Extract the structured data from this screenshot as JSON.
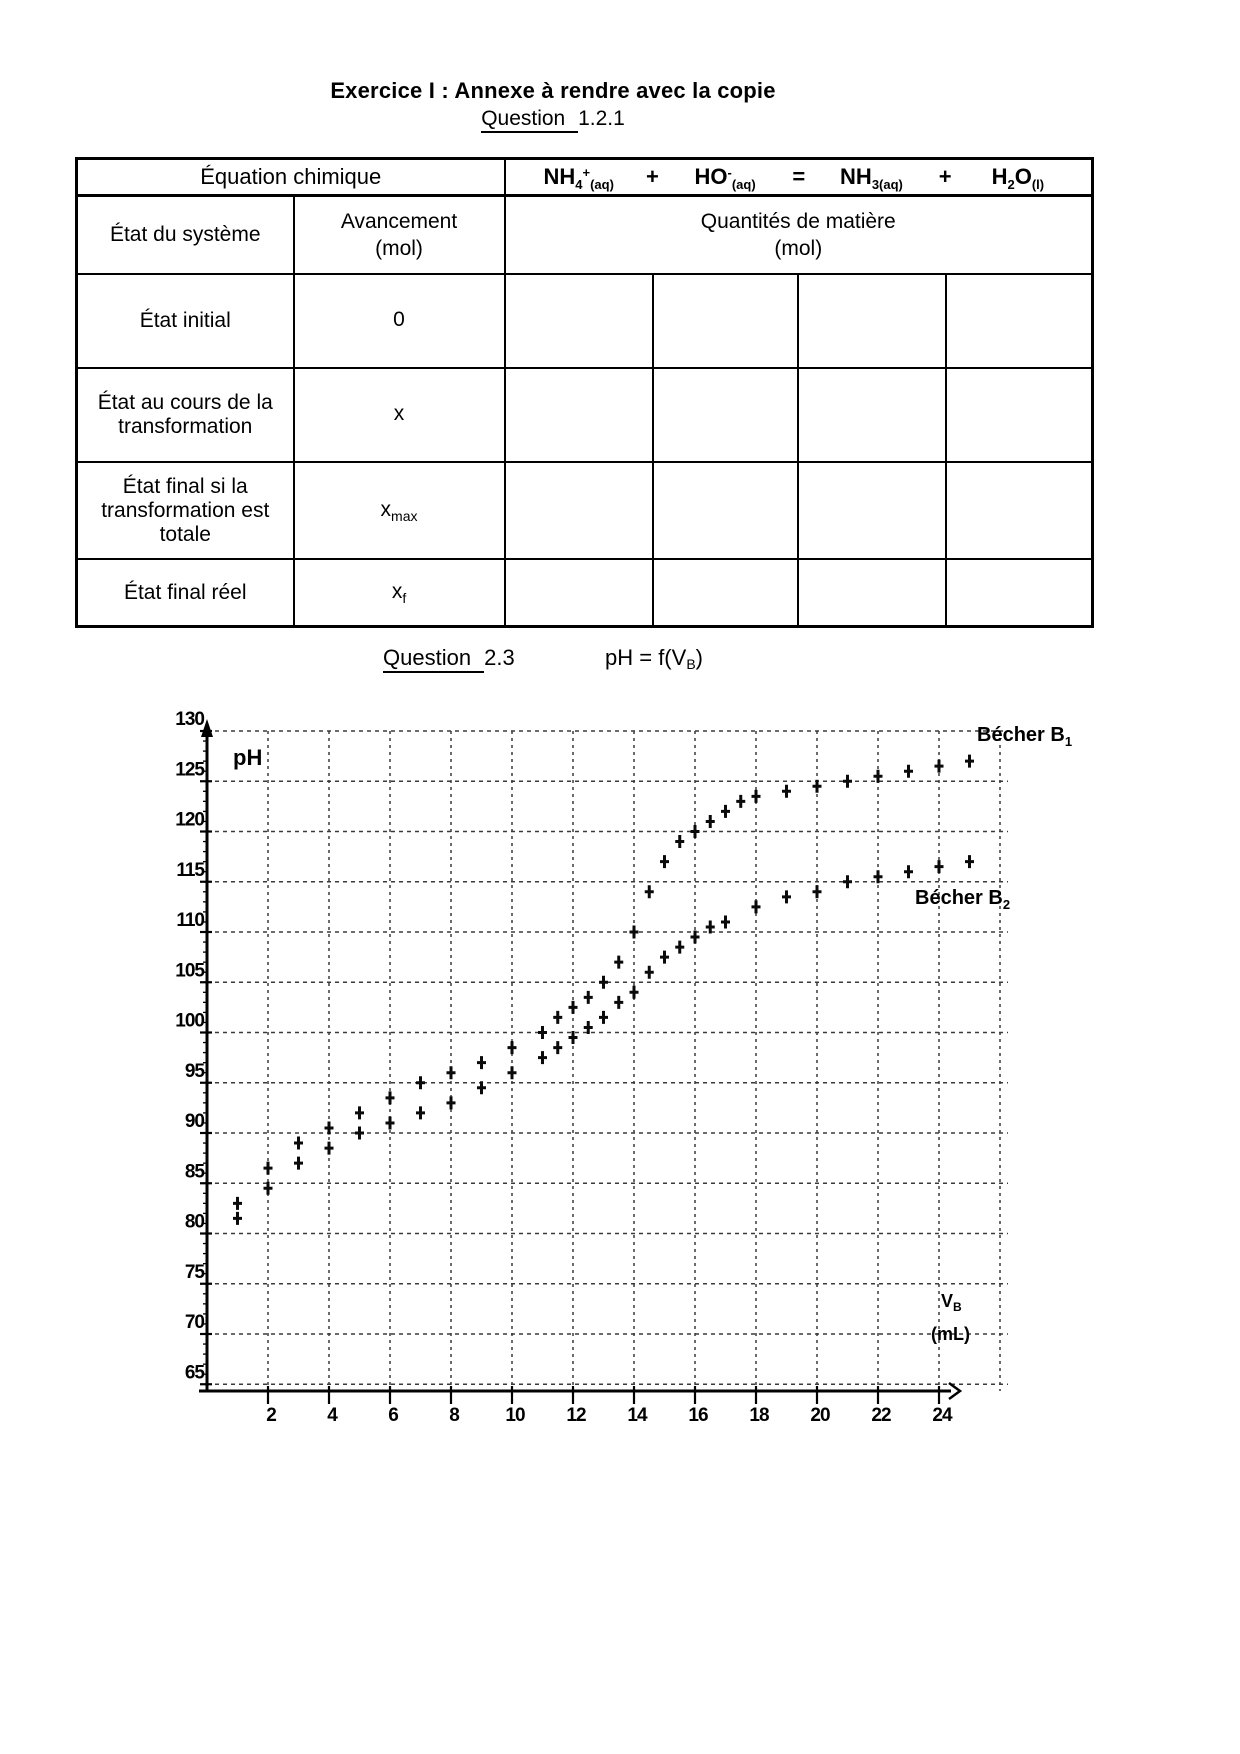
{
  "page": {
    "title": "Exercice I : Annexe à rendre avec la copie",
    "question1": {
      "underlined": "Question ",
      "rest": "1.2.1"
    },
    "question2": {
      "underlined": "Question ",
      "rest": "2.3"
    },
    "question2_formula": {
      "pre": "pH = f(V",
      "sub": "B",
      "post": ")"
    }
  },
  "table": {
    "equation_label": "Équation chimique",
    "equation": {
      "sp1": {
        "main": "NH",
        "sub": "4",
        "sup": "+",
        "state": "(aq)"
      },
      "op1": "+",
      "sp2": {
        "main": "HO",
        "sup": "-",
        "state": "(aq)"
      },
      "op2": "=",
      "sp3": {
        "main": "NH",
        "sub": "3(aq)"
      },
      "op3": "+",
      "sp4": {
        "m1": "H",
        "s1": "2",
        "m2": "O",
        "s2": "(l)"
      }
    },
    "col_headers": {
      "state": "État du système",
      "avancement_line1": "Avancement",
      "avancement_line2": "(mol)",
      "quantites_line1": "Quantités de matière",
      "quantites_line2": "(mol)"
    },
    "rows": [
      {
        "label": "État initial",
        "avancement": "0"
      },
      {
        "label": "État au cours de la transformation",
        "avancement": "x"
      },
      {
        "label": "État final si la transformation est totale",
        "avancement": "x",
        "avancement_sub": "max"
      },
      {
        "label": "État final réel",
        "avancement": "x",
        "avancement_sub": "f"
      }
    ]
  },
  "chart_data": {
    "type": "scatter",
    "title": "pH = f(VB)",
    "xlabel": {
      "main": "V",
      "sub": "B",
      "unit": "(mL)"
    },
    "ylabel": "pH",
    "xlim": [
      0,
      26
    ],
    "ylim": [
      6.5,
      13.0
    ],
    "grid": {
      "x_step_mL": 2,
      "y_step_pH": 0.5,
      "style": "dashed"
    },
    "x_ticks": [
      2,
      4,
      6,
      8,
      10,
      12,
      14,
      16,
      18,
      20,
      22,
      24
    ],
    "y_ticks": [
      {
        "label": "130",
        "value": 13.0
      },
      {
        "label": "125",
        "value": 12.5
      },
      {
        "label": "120",
        "value": 12.0
      },
      {
        "label": "115",
        "value": 11.5
      },
      {
        "label": "110",
        "value": 11.0
      },
      {
        "label": "105",
        "value": 10.5
      },
      {
        "label": "100",
        "value": 10.0
      },
      {
        "label": "95",
        "value": 9.5
      },
      {
        "label": "90",
        "value": 9.0
      },
      {
        "label": "85",
        "value": 8.5
      },
      {
        "label": "80",
        "value": 8.0
      },
      {
        "label": "75",
        "value": 7.5
      },
      {
        "label": "70",
        "value": 7.0
      },
      {
        "label": "65",
        "value": 6.5
      }
    ],
    "series": [
      {
        "name": "Bécher B",
        "name_sub": "1",
        "marker": "plus",
        "points": [
          [
            1,
            8.3
          ],
          [
            2,
            8.65
          ],
          [
            3,
            8.9
          ],
          [
            4,
            9.05
          ],
          [
            5,
            9.2
          ],
          [
            6,
            9.35
          ],
          [
            7,
            9.5
          ],
          [
            8,
            9.6
          ],
          [
            9,
            9.7
          ],
          [
            10,
            9.85
          ],
          [
            11,
            10.0
          ],
          [
            11.5,
            10.15
          ],
          [
            12,
            10.25
          ],
          [
            12.5,
            10.35
          ],
          [
            13,
            10.5
          ],
          [
            13.5,
            10.7
          ],
          [
            14,
            11.0
          ],
          [
            14.5,
            11.4
          ],
          [
            15,
            11.7
          ],
          [
            15.5,
            11.9
          ],
          [
            16,
            12.0
          ],
          [
            16.5,
            12.1
          ],
          [
            17,
            12.2
          ],
          [
            17.5,
            12.3
          ],
          [
            18,
            12.35
          ],
          [
            19,
            12.4
          ],
          [
            20,
            12.45
          ],
          [
            21,
            12.5
          ],
          [
            22,
            12.55
          ],
          [
            23,
            12.6
          ],
          [
            24,
            12.65
          ],
          [
            25,
            12.7
          ]
        ]
      },
      {
        "name": "Bécher B",
        "name_sub": "2",
        "marker": "plus",
        "points": [
          [
            1,
            8.15
          ],
          [
            2,
            8.45
          ],
          [
            3,
            8.7
          ],
          [
            4,
            8.85
          ],
          [
            5,
            9.0
          ],
          [
            6,
            9.1
          ],
          [
            7,
            9.2
          ],
          [
            8,
            9.3
          ],
          [
            9,
            9.45
          ],
          [
            10,
            9.6
          ],
          [
            11,
            9.75
          ],
          [
            11.5,
            9.85
          ],
          [
            12,
            9.95
          ],
          [
            12.5,
            10.05
          ],
          [
            13,
            10.15
          ],
          [
            13.5,
            10.3
          ],
          [
            14,
            10.4
          ],
          [
            14.5,
            10.6
          ],
          [
            15,
            10.75
          ],
          [
            15.5,
            10.85
          ],
          [
            16,
            10.95
          ],
          [
            16.5,
            11.05
          ],
          [
            17,
            11.1
          ],
          [
            18,
            11.25
          ],
          [
            19,
            11.35
          ],
          [
            20,
            11.4
          ],
          [
            21,
            11.5
          ],
          [
            22,
            11.55
          ],
          [
            23,
            11.6
          ],
          [
            24,
            11.65
          ],
          [
            25,
            11.7
          ]
        ]
      }
    ]
  }
}
